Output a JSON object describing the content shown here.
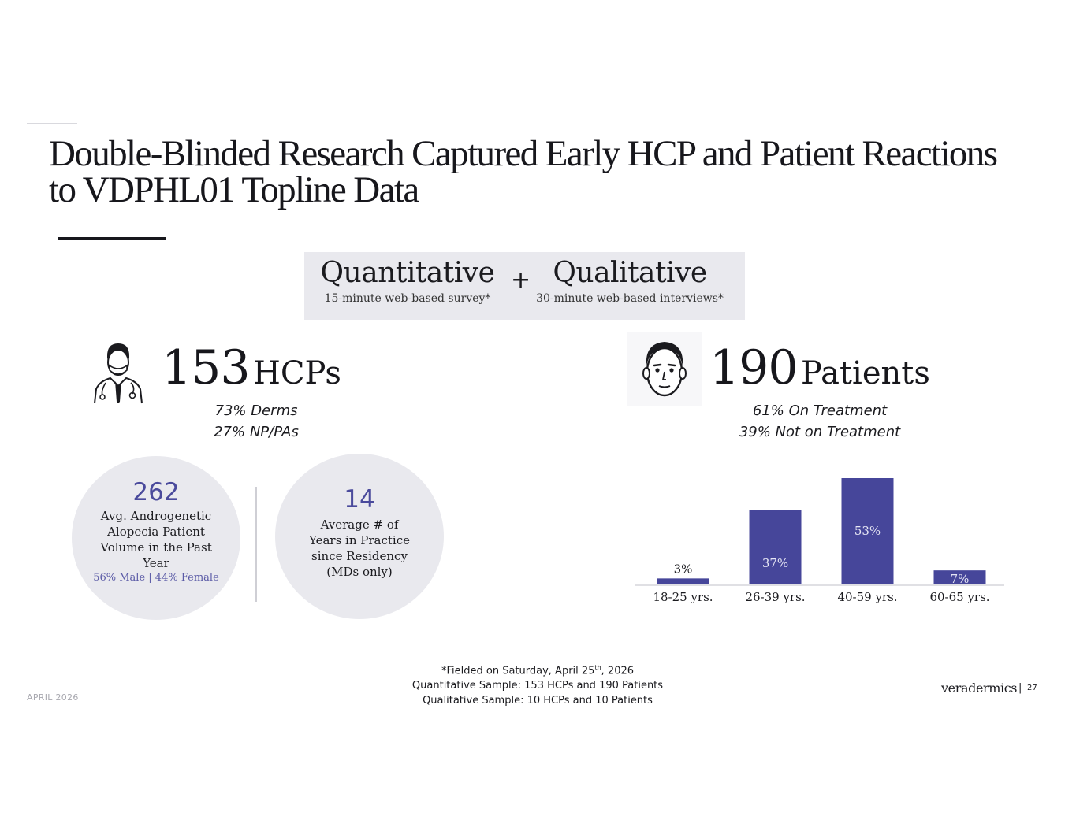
{
  "slide": {
    "title_line1": "Double-Blinded Research Captured Early HCP and Patient Reactions",
    "title_line2": "to VDPHL01 Topline Data"
  },
  "methods": {
    "quantitative": {
      "heading": "Quantitative",
      "sub": "15-minute web-based survey*"
    },
    "plus": "+",
    "qualitative": {
      "heading": "Qualitative",
      "sub": "30-minute web-based interviews*"
    }
  },
  "hcps": {
    "icon": "doctor-icon",
    "count": "153",
    "label": "HCPs",
    "breakdown1": "73% Derms",
    "breakdown2": "27% NP/PAs",
    "stat1": {
      "value": "262",
      "line1": "Avg. Androgenetic",
      "line2": "Alopecia Patient",
      "line3": "Volume in the Past",
      "line4": "Year",
      "sub": "56% Male | 44% Female"
    },
    "stat2": {
      "value": "14",
      "line1": "Average # of",
      "line2": "Years in Practice",
      "line3": "since Residency",
      "line4": "(MDs only)"
    }
  },
  "patients": {
    "icon": "patient-face-icon",
    "count": "190",
    "label": "Patients",
    "breakdown1": "61% On Treatment",
    "breakdown2": "39% Not on Treatment"
  },
  "chart_data": {
    "type": "bar",
    "categories": [
      "18-25 yrs.",
      "26-39 yrs.",
      "40-59 yrs.",
      "60-65 yrs."
    ],
    "values": [
      3,
      37,
      53,
      7
    ],
    "data_labels": [
      "3%",
      "37%",
      "53%",
      "7%"
    ],
    "title": "",
    "xlabel": "",
    "ylabel": "",
    "ylim": [
      0,
      53
    ],
    "bar_color": "#46469a",
    "grid": false,
    "legend": "none"
  },
  "footer": {
    "footnote_prefix": "*Fielded on Saturday, April 25",
    "footnote_sup": "th",
    "footnote_suffix": ", 2026",
    "footnote_line2": "Quantitative Sample: 153 HCPs and 190 Patients",
    "footnote_line3": "Qualitative Sample: 10 HCPs and 10 Patients",
    "date": "APRIL 2026",
    "brand": "veradermics",
    "separator": "|",
    "page_number": "27"
  }
}
